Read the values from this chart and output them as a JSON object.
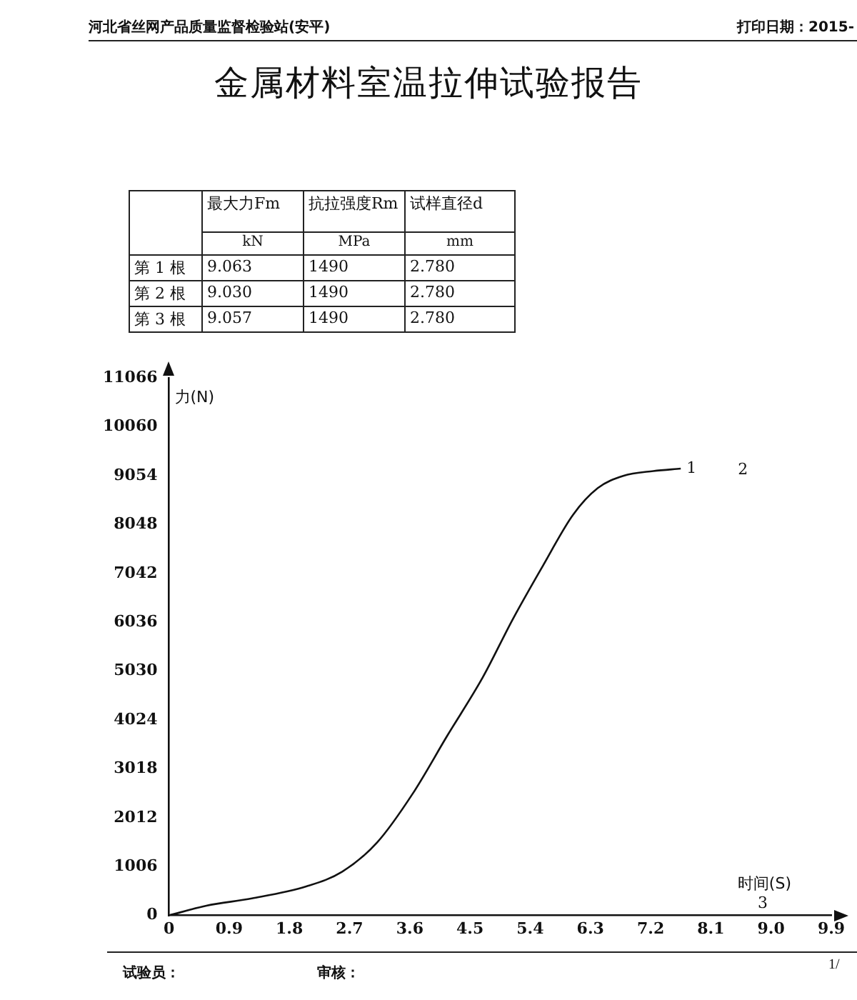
{
  "chart_data": {
    "type": "line",
    "title": "金属材料室温拉伸试验报告",
    "xlabel": "时间(S)",
    "ylabel": "力(N)",
    "x": [
      0,
      0.56,
      1.24,
      2.06,
      2.59,
      3.11,
      3.64,
      4.16,
      4.69,
      5.14,
      5.59,
      6.04,
      6.41,
      6.79,
      7.24,
      7.65
    ],
    "series": [
      {
        "color": "#111111",
        "values": [
          0,
          200,
          350,
          600,
          900,
          1500,
          2500,
          3700,
          4900,
          6100,
          7200,
          8250,
          8800,
          9050,
          9150,
          9200
        ]
      }
    ],
    "xlim": [
      0,
      9.9
    ],
    "ylim": [
      0,
      11066
    ],
    "xticks": [
      0,
      0.9,
      1.8,
      2.7,
      3.6,
      4.5,
      5.4,
      6.3,
      7.2,
      8.1,
      {
        "value": 9,
        "label": "9.0"
      },
      9.9
    ],
    "yticks": [
      0,
      1006,
      2012,
      3018,
      4024,
      5030,
      6036,
      7042,
      8048,
      9054,
      10060,
      11066
    ],
    "grid": false,
    "legend": false,
    "marker": "none",
    "line_style": "solid",
    "annotations": [
      "河北省丝网产品质量监督检验站(安平)",
      "打印日期：2015-",
      "最大力Fm",
      "抗拉强度Rm",
      "试样直径d",
      "kN",
      "MPa",
      "mm",
      "第 1 根",
      "9.063",
      "1490",
      "2.780",
      "第 2 根",
      "9.030",
      "1490",
      "2.780",
      "第 3 根",
      "9.057",
      "1490",
      "2.780",
      "试验员：",
      "审核：",
      "1/",
      "1",
      "2",
      "3"
    ]
  }
}
